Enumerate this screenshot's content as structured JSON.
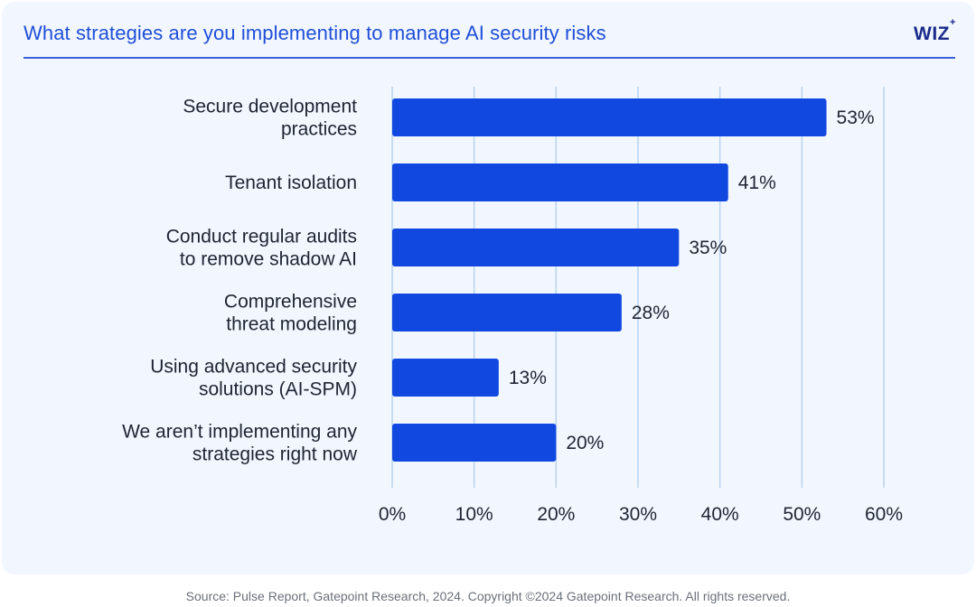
{
  "header": {
    "title": "What strategies are you implementing to manage AI security risks",
    "logo_text": "WIZ",
    "logo_mark": "+"
  },
  "footer": {
    "source": "Source: Pulse Report, Gatepoint Research, 2024. Copyright ©2024 Gatepoint Research. All rights reserved."
  },
  "colors": {
    "bar": "#1048e0",
    "grid": "#b8d3ef",
    "text": "#1e2433",
    "title": "#1f4fd8"
  },
  "chart_data": {
    "type": "bar",
    "orientation": "horizontal",
    "title": "What strategies are you implementing to manage AI security risks",
    "xlabel": "",
    "ylabel": "",
    "xlim": [
      0,
      60
    ],
    "ticks": [
      0,
      10,
      20,
      30,
      40,
      50,
      60
    ],
    "tick_labels": [
      "0%",
      "10%",
      "20%",
      "30%",
      "40%",
      "50%",
      "60%"
    ],
    "grid": true,
    "categories": [
      [
        "Secure development",
        "practices"
      ],
      [
        "Tenant isolation"
      ],
      [
        "Conduct regular audits",
        "to remove shadow AI"
      ],
      [
        "Comprehensive",
        "threat modeling"
      ],
      [
        "Using advanced security",
        "solutions (AI-SPM)"
      ],
      [
        "We aren’t implementing any",
        "strategies right now"
      ]
    ],
    "values": [
      53,
      41,
      35,
      28,
      13,
      20
    ],
    "value_labels": [
      "53%",
      "41%",
      "35%",
      "28%",
      "13%",
      "20%"
    ]
  }
}
